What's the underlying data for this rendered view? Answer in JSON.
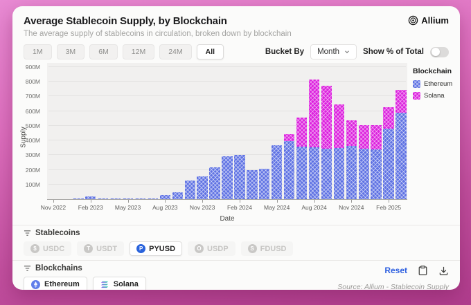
{
  "header": {
    "title": "Average Stablecoin Supply, by Blockchain",
    "subtitle": "The average supply of stablecoins in circulation, broken down by blockchain",
    "brand": "Allium"
  },
  "controls": {
    "ranges": [
      {
        "label": "1M",
        "active": false
      },
      {
        "label": "3M",
        "active": false
      },
      {
        "label": "6M",
        "active": false
      },
      {
        "label": "12M",
        "active": false
      },
      {
        "label": "24M",
        "active": false
      },
      {
        "label": "All",
        "active": true
      }
    ],
    "bucket_by_label": "Bucket By",
    "bucket_by_value": "Month",
    "show_percent_label": "Show % of Total",
    "show_percent_on": false
  },
  "legend": {
    "title": "Blockchain",
    "items": [
      "Ethereum",
      "Solana"
    ]
  },
  "chart_data": {
    "type": "bar",
    "stacked": true,
    "title": "Average Stablecoin Supply, by Blockchain",
    "xlabel": "Date",
    "ylabel": "Supply",
    "unit": "millions (M)",
    "ylim": [
      0,
      900
    ],
    "y_tick_step": 100,
    "grid": true,
    "legend_position": "right",
    "x": [
      "Nov 2022",
      "Dec 2022",
      "Jan 2023",
      "Feb 2023",
      "Mar 2023",
      "Apr 2023",
      "May 2023",
      "Jun 2023",
      "Jul 2023",
      "Aug 2023",
      "Sep 2023",
      "Oct 2023",
      "Nov 2023",
      "Dec 2023",
      "Jan 2024",
      "Feb 2024",
      "Mar 2024",
      "Apr 2024",
      "May 2024",
      "Jun 2024",
      "Jul 2024",
      "Aug 2024",
      "Sep 2024",
      "Oct 2024",
      "Nov 2024",
      "Dec 2024",
      "Jan 2025",
      "Feb 2025",
      "Mar 2025"
    ],
    "x_tick_indices": [
      0,
      3,
      6,
      9,
      12,
      15,
      18,
      21,
      24,
      27
    ],
    "series": [
      {
        "name": "Ethereum",
        "color": "#5f72e3",
        "values": [
          0,
          0,
          1,
          18,
          2,
          2,
          2,
          2,
          3,
          28,
          45,
          125,
          157,
          216,
          290,
          302,
          196,
          208,
          366,
          394,
          360,
          352,
          345,
          350,
          362,
          345,
          340,
          480,
          590
        ]
      },
      {
        "name": "Solana",
        "color": "#dc22de",
        "values": [
          0,
          0,
          0,
          0,
          0,
          0,
          0,
          0,
          0,
          0,
          0,
          0,
          0,
          0,
          0,
          0,
          0,
          0,
          0,
          50,
          194,
          462,
          430,
          298,
          177,
          158,
          163,
          149,
          156
        ]
      }
    ]
  },
  "stablecoins": {
    "label": "Stablecoins",
    "items": [
      {
        "label": "USDC",
        "active": false,
        "icon_letter": "$"
      },
      {
        "label": "USDT",
        "active": false,
        "icon_letter": "T"
      },
      {
        "label": "PYUSD",
        "active": true,
        "icon_letter": "P"
      },
      {
        "label": "USDP",
        "active": false,
        "icon_letter": "O"
      },
      {
        "label": "FDUSD",
        "active": false,
        "icon_letter": "S"
      }
    ]
  },
  "blockchains": {
    "label": "Blockchains",
    "items": [
      {
        "label": "Ethereum"
      },
      {
        "label": "Solana"
      }
    ]
  },
  "footer": {
    "reset_label": "Reset",
    "source": "Source: Allium - Stablecoin Supply"
  },
  "colors": {
    "ethereum": "#5f72e3",
    "solana": "#dc22de",
    "pyusd_icon_blue": "#2a63dc",
    "ethereum_icon_blue": "#627eea",
    "accent_blue": "#2d5fe0",
    "card_bg": "#fbfbfa",
    "plot_bg": "#f1f0ef"
  }
}
